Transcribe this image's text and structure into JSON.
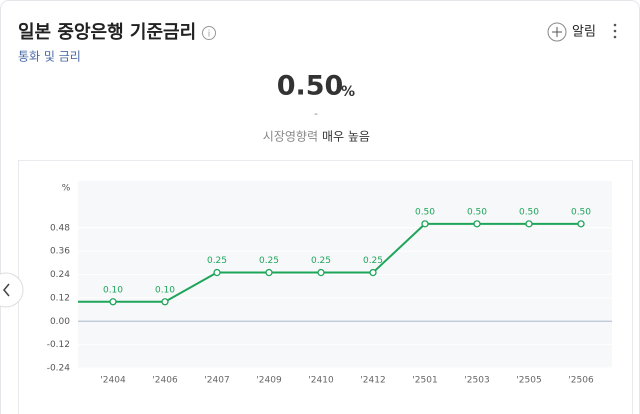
{
  "header": {
    "title": "일본 중앙은행 기준금리",
    "subtitle": "통화 및 금리",
    "alert": "알림"
  },
  "summary": {
    "value": "0.50",
    "unit": "%",
    "change": "-",
    "impact_label": "시장영향력",
    "impact_value": "매우 높음"
  },
  "chart_data": {
    "type": "line",
    "y_unit": "%",
    "categories": [
      "'2404",
      "'2406",
      "'2407",
      "'2409",
      "'2410",
      "'2412",
      "'2501",
      "'2503",
      "'2505",
      "'2506"
    ],
    "series": [
      {
        "color": "#1ea55a",
        "values": [
          0.1,
          0.1,
          0.25,
          0.25,
          0.25,
          0.25,
          0.5,
          0.5,
          0.5,
          0.5
        ],
        "value_labels": [
          "0.10",
          "0.10",
          "0.25",
          "0.25",
          "0.25",
          "0.25",
          "0.50",
          "0.50",
          "0.50",
          "0.50"
        ]
      }
    ],
    "ylim": [
      -0.24,
      0.72
    ],
    "yticks": [
      -0.24,
      -0.12,
      {
        "value": 0,
        "label": "0.00"
      },
      0.12,
      0.24,
      0.36,
      0.48
    ],
    "grid": true
  }
}
